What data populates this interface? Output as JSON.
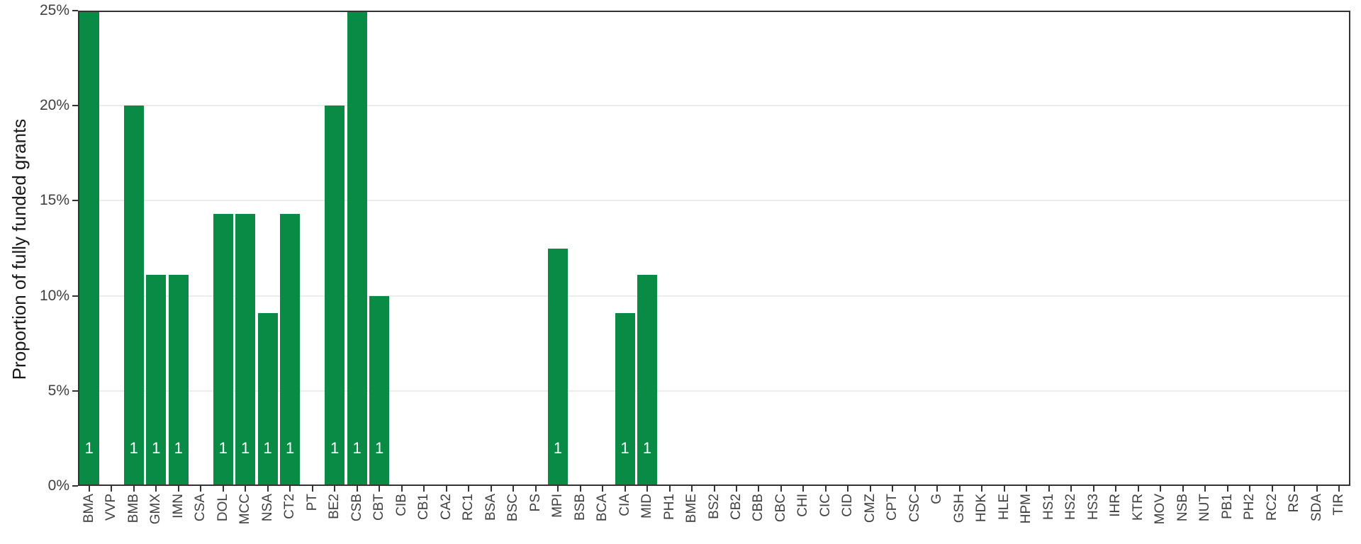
{
  "chart_data": {
    "type": "bar",
    "title": "",
    "xlabel": "",
    "ylabel": "Proportion of fully funded grants",
    "ylim": [
      0,
      25
    ],
    "grid": "horizontal-major",
    "legend_position": "none",
    "yticks": [
      {
        "value": 0,
        "label": "0%"
      },
      {
        "value": 5,
        "label": "5%"
      },
      {
        "value": 10,
        "label": "10%"
      },
      {
        "value": 15,
        "label": "15%"
      },
      {
        "value": 20,
        "label": "20%"
      },
      {
        "value": 25,
        "label": "25%"
      }
    ],
    "grid_values": [
      5,
      10,
      15,
      20
    ],
    "categories": [
      "BMA",
      "VVP",
      "BMB",
      "GMX",
      "IMN",
      "CSA",
      "DOL",
      "MCC",
      "NSA",
      "CT2",
      "PT",
      "BE2",
      "CSB",
      "CBT",
      "CIB",
      "CB1",
      "CA2",
      "RC1",
      "BSA",
      "BSC",
      "PS",
      "MPI",
      "BSB",
      "BCA",
      "CIA",
      "MID",
      "PH1",
      "BME",
      "BS2",
      "CB2",
      "CBB",
      "CBC",
      "CHI",
      "CIC",
      "CID",
      "CMZ",
      "CPT",
      "CSC",
      "G",
      "GSH",
      "HDK",
      "HLE",
      "HPM",
      "HS1",
      "HS2",
      "HS3",
      "IHR",
      "KTR",
      "MOV",
      "NSB",
      "NUT",
      "PB1",
      "PH2",
      "RC2",
      "RS",
      "SDA",
      "TIR"
    ],
    "values": [
      25,
      0,
      20,
      11.1,
      11.1,
      0,
      14.3,
      14.3,
      9.1,
      14.3,
      0,
      20,
      25,
      10,
      0,
      0,
      0,
      0,
      0,
      0,
      0,
      12.5,
      0,
      0,
      9.1,
      11.1,
      0,
      0,
      0,
      0,
      0,
      0,
      0,
      0,
      0,
      0,
      0,
      0,
      0,
      0,
      0,
      0,
      0,
      0,
      0,
      0,
      0,
      0,
      0,
      0,
      0,
      0,
      0,
      0,
      0,
      0,
      0
    ],
    "bar_labels": [
      "1",
      "",
      "1",
      "1",
      "1",
      "",
      "1",
      "1",
      "1",
      "1",
      "",
      "1",
      "1",
      "1",
      "",
      "",
      "",
      "",
      "",
      "",
      "",
      "1",
      "",
      "",
      "1",
      "1",
      "",
      "",
      "",
      "",
      "",
      "",
      "",
      "",
      "",
      "",
      "",
      "",
      "",
      "",
      "",
      "",
      "",
      "",
      "",
      "",
      "",
      "",
      "",
      "",
      "",
      "",
      "",
      "",
      "",
      "",
      ""
    ],
    "colors": {
      "bar": "#098b45",
      "bar_label": "#ffffff",
      "axis": "#333333",
      "grid": "#ececec",
      "tick_label": "#404040",
      "axis_title": "#1a1a1a",
      "background": "#ffffff"
    }
  }
}
